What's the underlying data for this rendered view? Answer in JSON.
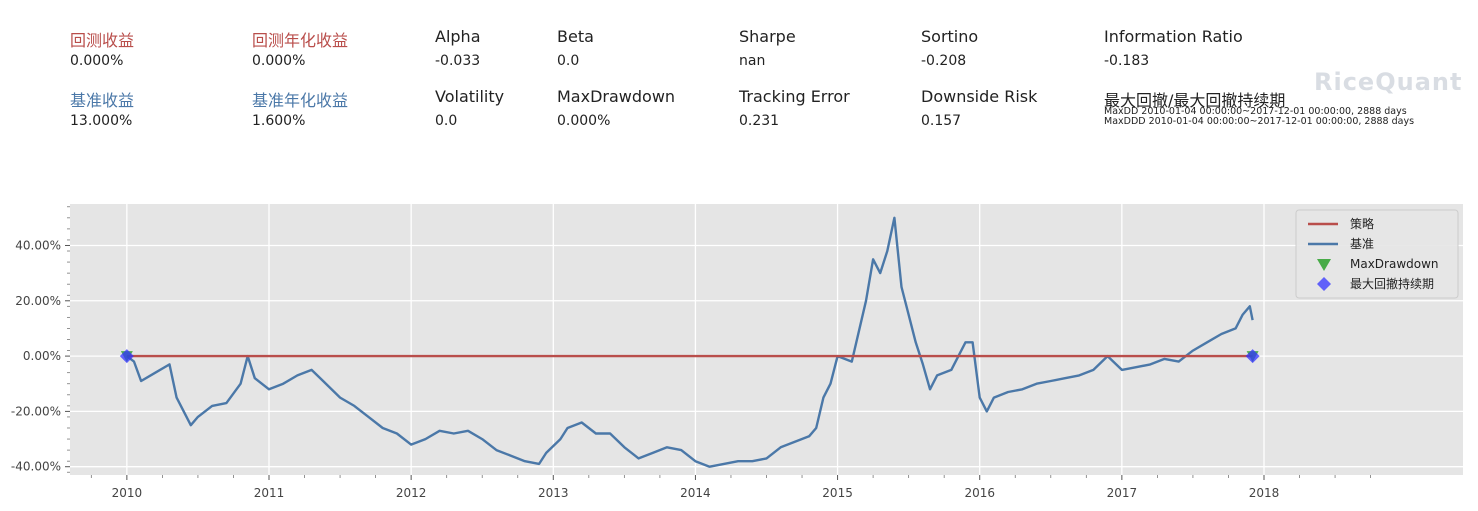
{
  "metrics_row1": [
    {
      "label": "回测收益",
      "value": "0.000%",
      "color": "#b94e4b"
    },
    {
      "label": "回测年化收益",
      "value": "0.000%",
      "color": "#b94e4b"
    },
    {
      "label": "Alpha",
      "value": "-0.033",
      "color": "#222222"
    },
    {
      "label": "Beta",
      "value": "0.0",
      "color": "#222222"
    },
    {
      "label": "Sharpe",
      "value": "nan",
      "color": "#222222"
    },
    {
      "label": "Sortino",
      "value": "-0.208",
      "color": "#222222"
    },
    {
      "label": "Information Ratio",
      "value": "-0.183",
      "color": "#222222"
    }
  ],
  "metrics_row2": [
    {
      "label": "基准收益",
      "value": "13.000%",
      "color": "#4b78a8"
    },
    {
      "label": "基准年化收益",
      "value": "1.600%",
      "color": "#4b78a8"
    },
    {
      "label": "Volatility",
      "value": "0.0",
      "color": "#222222"
    },
    {
      "label": "MaxDrawdown",
      "value": "0.000%",
      "color": "#222222"
    },
    {
      "label": "Tracking Error",
      "value": "0.231",
      "color": "#222222"
    },
    {
      "label": "Downside Risk",
      "value": "0.157",
      "color": "#222222"
    },
    {
      "label": "最大回撤/最大回撤持续期",
      "value": "",
      "color": "#222222"
    }
  ],
  "drawdown_info": {
    "maxdd": "MaxDD  2010-01-04 00:00:00~2017-12-01 00:00:00, 2888 days",
    "maxddd": "MaxDDD 2010-01-04 00:00:00~2017-12-01 00:00:00, 2888 days"
  },
  "watermark": "RiceQuant",
  "chart_data": {
    "type": "line",
    "title": "",
    "xlabel": "",
    "ylabel": "",
    "ylim": [
      -43,
      55
    ],
    "xlim": [
      2009.6,
      2019.4
    ],
    "grid": true,
    "legend_placement": "top-right",
    "x_ticks": [
      2010,
      2011,
      2012,
      2013,
      2014,
      2015,
      2016,
      2017,
      2018
    ],
    "x_tick_labels": [
      "2010",
      "2011",
      "2012",
      "2013",
      "2014",
      "2015",
      "2016",
      "2017",
      "2018"
    ],
    "y_ticks": [
      -40,
      -20,
      0,
      20,
      40
    ],
    "y_tick_labels": [
      "-40.00%",
      "-20.00%",
      "0.00%",
      "20.00%",
      "40.00%"
    ],
    "series": [
      {
        "name": "策略",
        "color": "#b94e4b",
        "x": [
          2010.0,
          2017.92
        ],
        "y": [
          0,
          0
        ]
      },
      {
        "name": "基准",
        "color": "#4b78a8",
        "x": [
          2010.0,
          2010.05,
          2010.1,
          2010.2,
          2010.3,
          2010.35,
          2010.45,
          2010.5,
          2010.6,
          2010.7,
          2010.8,
          2010.85,
          2010.9,
          2011.0,
          2011.1,
          2011.2,
          2011.3,
          2011.4,
          2011.5,
          2011.6,
          2011.7,
          2011.8,
          2011.9,
          2012.0,
          2012.1,
          2012.2,
          2012.3,
          2012.4,
          2012.5,
          2012.6,
          2012.7,
          2012.8,
          2012.9,
          2012.95,
          2013.05,
          2013.1,
          2013.2,
          2013.3,
          2013.4,
          2013.5,
          2013.6,
          2013.7,
          2013.8,
          2013.9,
          2014.0,
          2014.1,
          2014.2,
          2014.3,
          2014.4,
          2014.5,
          2014.6,
          2014.7,
          2014.8,
          2014.85,
          2014.9,
          2014.95,
          2015.0,
          2015.1,
          2015.2,
          2015.25,
          2015.3,
          2015.35,
          2015.4,
          2015.45,
          2015.5,
          2015.55,
          2015.6,
          2015.65,
          2015.7,
          2015.8,
          2015.9,
          2015.95,
          2016.0,
          2016.05,
          2016.1,
          2016.2,
          2016.3,
          2016.4,
          2016.5,
          2016.6,
          2016.7,
          2016.8,
          2016.9,
          2017.0,
          2017.1,
          2017.2,
          2017.3,
          2017.4,
          2017.5,
          2017.6,
          2017.7,
          2017.8,
          2017.85,
          2017.9,
          2017.92
        ],
        "y": [
          0,
          -2,
          -9,
          -6,
          -3,
          -15,
          -25,
          -22,
          -18,
          -17,
          -10,
          0,
          -8,
          -12,
          -10,
          -7,
          -5,
          -10,
          -15,
          -18,
          -22,
          -26,
          -28,
          -32,
          -30,
          -27,
          -28,
          -27,
          -30,
          -34,
          -36,
          -38,
          -39,
          -35,
          -30,
          -26,
          -24,
          -28,
          -28,
          -33,
          -37,
          -35,
          -33,
          -34,
          -38,
          -40,
          -39,
          -38,
          -38,
          -37,
          -33,
          -31,
          -29,
          -26,
          -15,
          -10,
          0,
          -2,
          20,
          35,
          30,
          38,
          50,
          25,
          15,
          5,
          -3,
          -12,
          -7,
          -5,
          5,
          5,
          -15,
          -20,
          -15,
          -13,
          -12,
          -10,
          -9,
          -8,
          -7,
          -5,
          0,
          -5,
          -4,
          -3,
          -1,
          -2,
          2,
          5,
          8,
          10,
          15,
          18,
          13
        ]
      },
      {
        "name": "MaxDrawdown",
        "color": "#2ca02c",
        "marker": "triangle-down",
        "x": [
          2010.0,
          2017.92
        ],
        "y": [
          0,
          0
        ]
      },
      {
        "name": "最大回撤持续期",
        "color": "#3333ff",
        "marker": "diamond",
        "x": [
          2010.0,
          2017.92
        ],
        "y": [
          0,
          0
        ]
      }
    ]
  }
}
